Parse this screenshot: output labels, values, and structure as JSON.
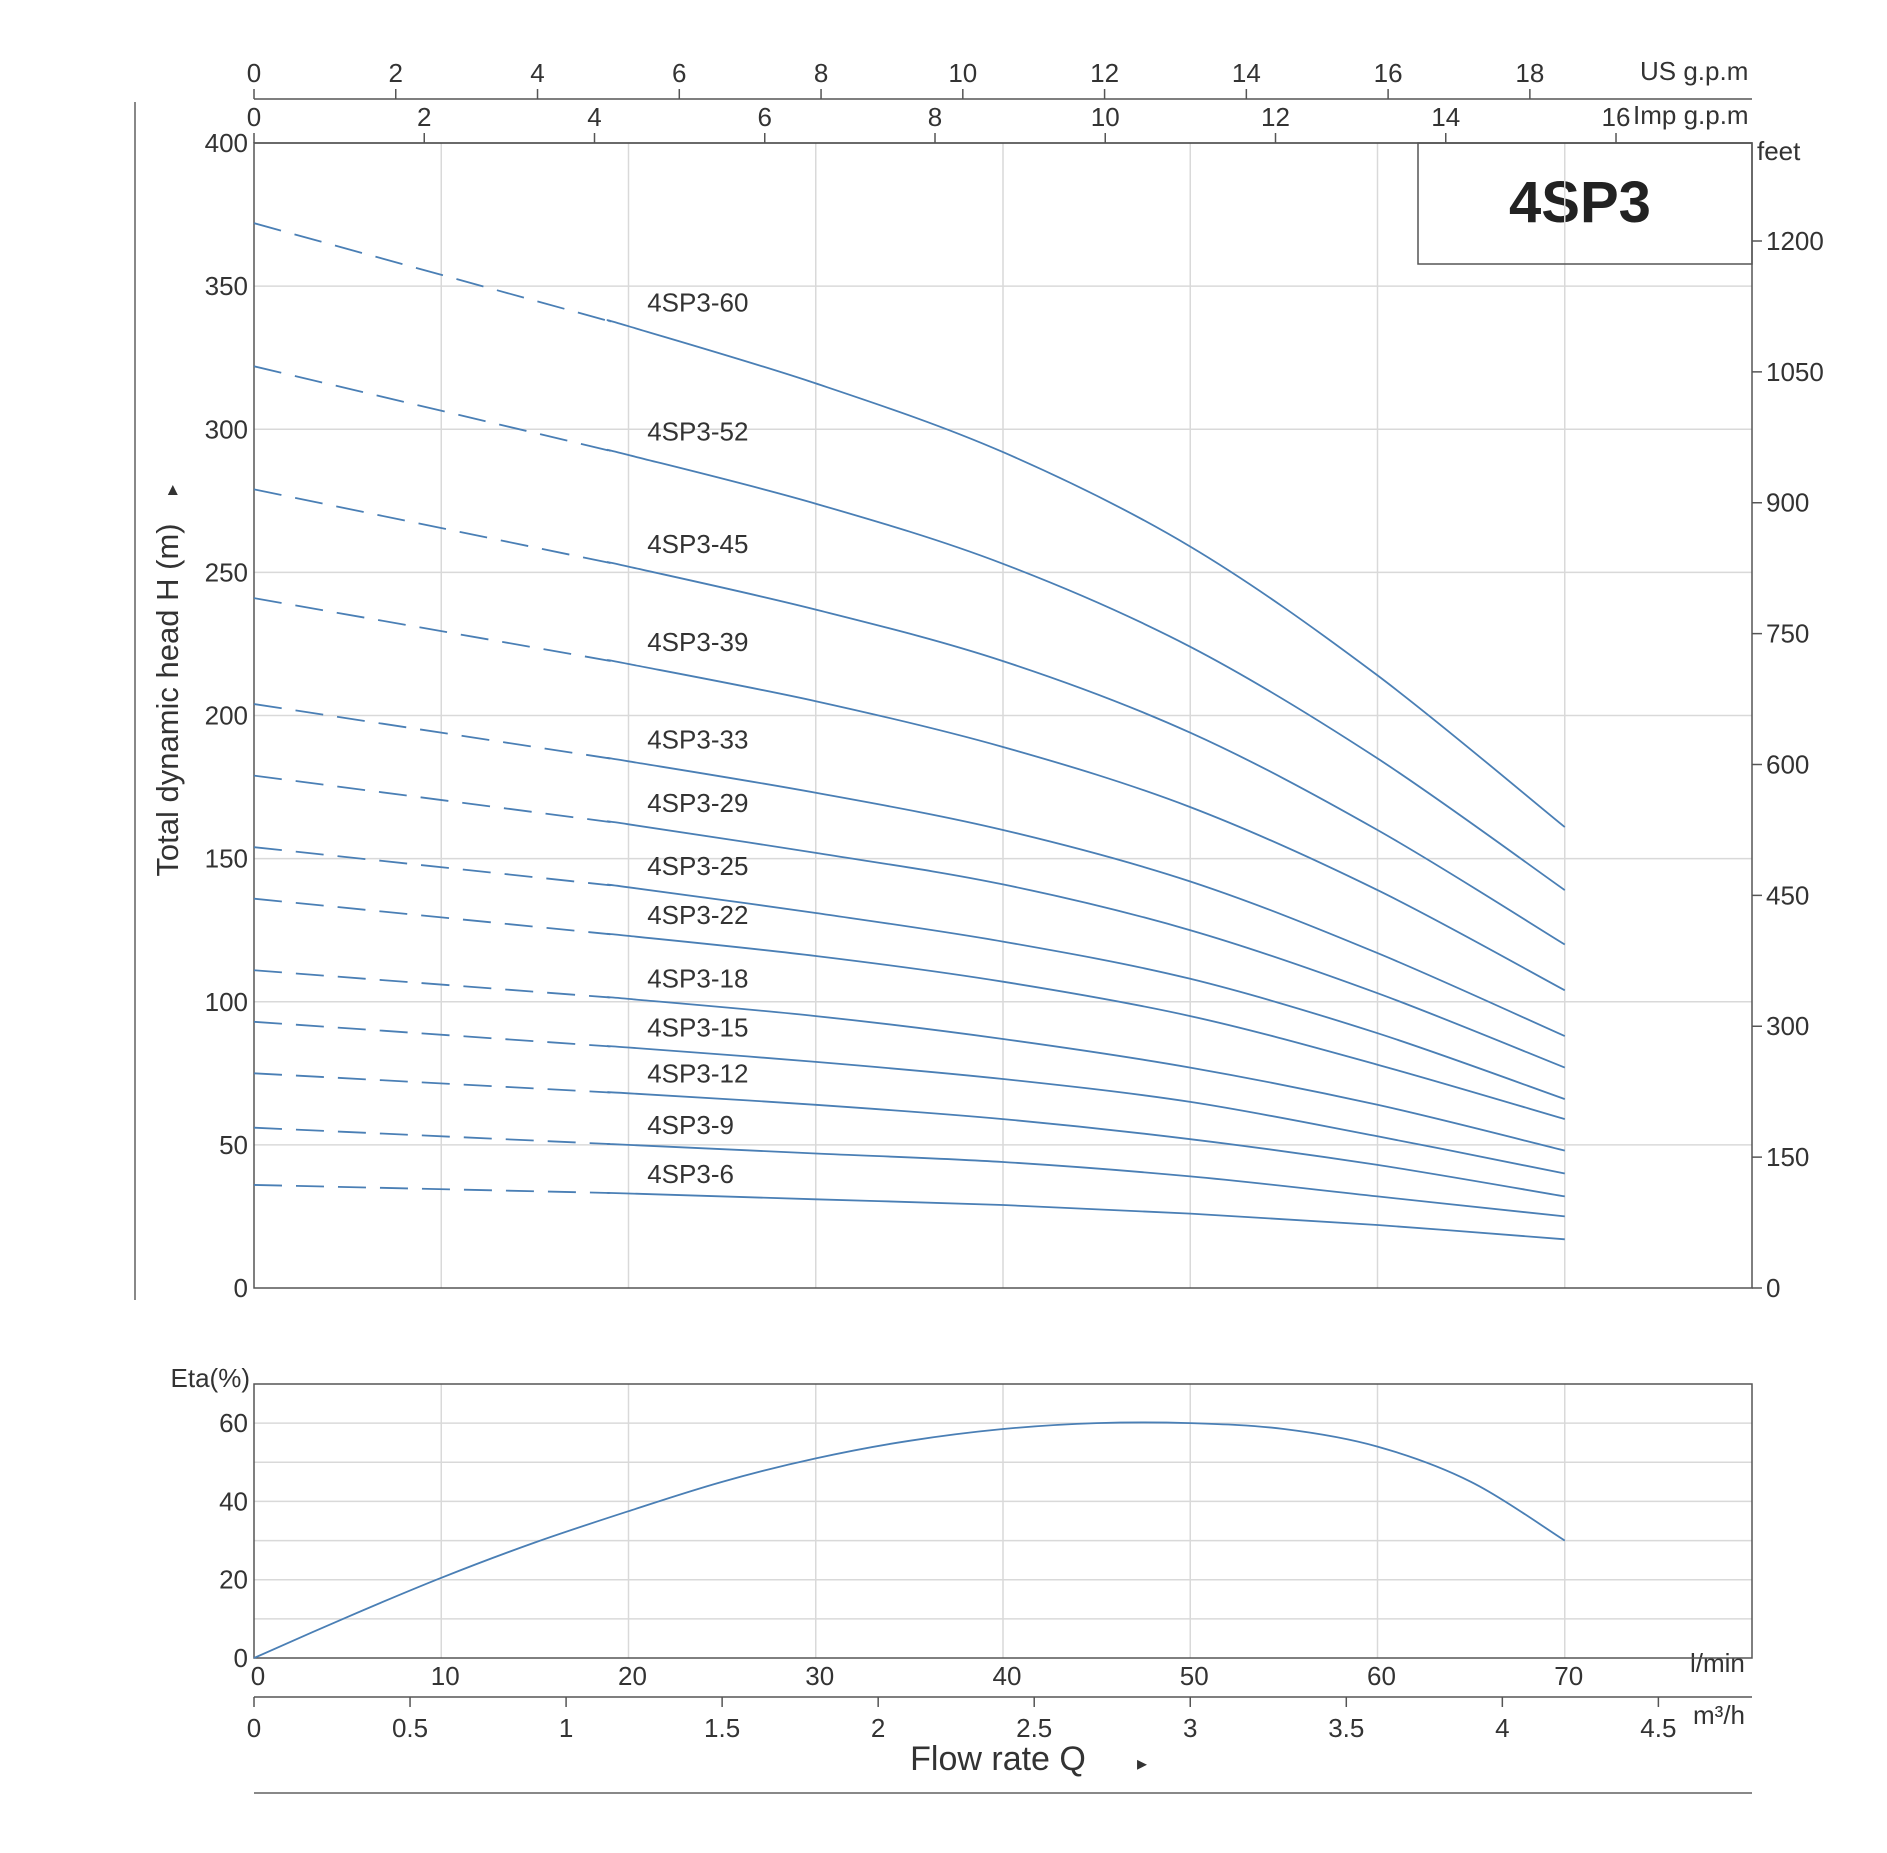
{
  "chart_data": [
    {
      "type": "line",
      "title": "4SP3",
      "ylabel": "Total dynamic head H (m)",
      "ylabel_arrow": "▸",
      "ylim": [
        0,
        400
      ],
      "y_ticks": [
        0,
        50,
        100,
        150,
        200,
        250,
        300,
        350,
        400
      ],
      "xlim": [
        0,
        80
      ],
      "x_major_gridlines": [
        10,
        20,
        30,
        40,
        50,
        60,
        70
      ],
      "y_right_axis": {
        "label": "feet",
        "ticks": [
          0,
          150,
          300,
          450,
          600,
          750,
          900,
          1050,
          1200
        ],
        "feet_per_meter": 3.2808
      },
      "top_axes": [
        {
          "label": "US g.p.m",
          "ticks": [
            "0",
            "2",
            "4",
            "6",
            "8",
            "10",
            "12",
            "14",
            "16",
            "18"
          ],
          "lmin_per_unit": 3.7854
        },
        {
          "label": "Imp g.p.m",
          "ticks": [
            "0",
            "2",
            "4",
            "6",
            "8",
            "10",
            "12",
            "14",
            "16"
          ],
          "lmin_per_unit": 4.5461
        }
      ],
      "grid": true,
      "dashed_segment_to_x": 19,
      "series": [
        {
          "name": "4SP3-60",
          "x": [
            0,
            10,
            20,
            30,
            40,
            50,
            60,
            70
          ],
          "y": [
            372,
            353,
            336,
            316,
            292,
            259,
            214,
            161
          ]
        },
        {
          "name": "4SP3-52",
          "x": [
            0,
            10,
            20,
            30,
            40,
            50,
            60,
            70
          ],
          "y": [
            322,
            306,
            291,
            274,
            253,
            224,
            185,
            139
          ]
        },
        {
          "name": "4SP3-45",
          "x": [
            0,
            10,
            20,
            30,
            40,
            50,
            60,
            70
          ],
          "y": [
            279,
            265,
            252,
            237,
            219,
            194,
            160,
            120
          ]
        },
        {
          "name": "4SP3-39",
          "x": [
            0,
            10,
            20,
            30,
            40,
            50,
            60,
            70
          ],
          "y": [
            241,
            229,
            218,
            205,
            189,
            168,
            139,
            104
          ]
        },
        {
          "name": "4SP3-33",
          "x": [
            0,
            10,
            20,
            30,
            40,
            50,
            60,
            70
          ],
          "y": [
            204,
            194,
            184,
            173,
            160,
            142,
            117,
            88
          ]
        },
        {
          "name": "4SP3-29",
          "x": [
            0,
            10,
            20,
            30,
            40,
            50,
            60,
            70
          ],
          "y": [
            179,
            170,
            162,
            152,
            141,
            125,
            103,
            77
          ]
        },
        {
          "name": "4SP3-25",
          "x": [
            0,
            10,
            20,
            30,
            40,
            50,
            60,
            70
          ],
          "y": [
            154,
            147,
            140,
            131,
            121,
            108,
            89,
            66
          ]
        },
        {
          "name": "4SP3-22",
          "x": [
            0,
            10,
            20,
            30,
            40,
            50,
            60,
            70
          ],
          "y": [
            136,
            129,
            123,
            116,
            107,
            95,
            78,
            59
          ]
        },
        {
          "name": "4SP3-18",
          "x": [
            0,
            10,
            20,
            30,
            40,
            50,
            60,
            70
          ],
          "y": [
            111,
            106,
            101,
            95,
            87,
            77,
            64,
            48
          ]
        },
        {
          "name": "4SP3-15",
          "x": [
            0,
            10,
            20,
            30,
            40,
            50,
            60,
            70
          ],
          "y": [
            93,
            88,
            84,
            79,
            73,
            65,
            53,
            40
          ]
        },
        {
          "name": "4SP3-12",
          "x": [
            0,
            10,
            20,
            30,
            40,
            50,
            60,
            70
          ],
          "y": [
            75,
            71,
            68,
            64,
            59,
            52,
            43,
            32
          ]
        },
        {
          "name": "4SP3-9",
          "x": [
            0,
            10,
            20,
            30,
            40,
            50,
            60,
            70
          ],
          "y": [
            56,
            53,
            50,
            47,
            44,
            39,
            32,
            25
          ]
        },
        {
          "name": "4SP3-6",
          "x": [
            0,
            10,
            20,
            30,
            40,
            50,
            60,
            70
          ],
          "y": [
            36,
            35,
            33,
            31,
            29,
            26,
            22,
            17
          ]
        }
      ]
    },
    {
      "type": "line",
      "ylabel": "Eta(%)",
      "ylim": [
        0,
        70
      ],
      "y_ticks": [
        0,
        20,
        40,
        60
      ],
      "y_gridlines": [
        10,
        20,
        30,
        40,
        50,
        60
      ],
      "xlim": [
        0,
        80
      ],
      "grid": true,
      "series": [
        {
          "x": [
            0,
            5,
            10,
            15,
            20,
            25,
            30,
            35,
            40,
            45,
            50,
            55,
            60,
            65,
            70
          ],
          "y": [
            0,
            10.5,
            20.5,
            29.5,
            37.5,
            45,
            51,
            55.5,
            58.5,
            60,
            60,
            58.5,
            54,
            45,
            30
          ]
        }
      ]
    }
  ],
  "x_axis": {
    "label": "Flow rate Q",
    "label_arrow": "▸",
    "lmin": {
      "label": "l/min",
      "ticks": [
        0,
        10,
        20,
        30,
        40,
        50,
        60,
        70
      ]
    },
    "m3h": {
      "label": "m³/h",
      "ticks": [
        "0",
        "0.5",
        "1",
        "1.5",
        "2",
        "2.5",
        "3",
        "3.5",
        "4",
        "4.5"
      ],
      "lmin_per_unit": 16.6667
    }
  },
  "colors": {
    "curve": "#4a7fb5",
    "grid": "#d9d9d9",
    "axis": "#555555",
    "text": "#333333"
  }
}
